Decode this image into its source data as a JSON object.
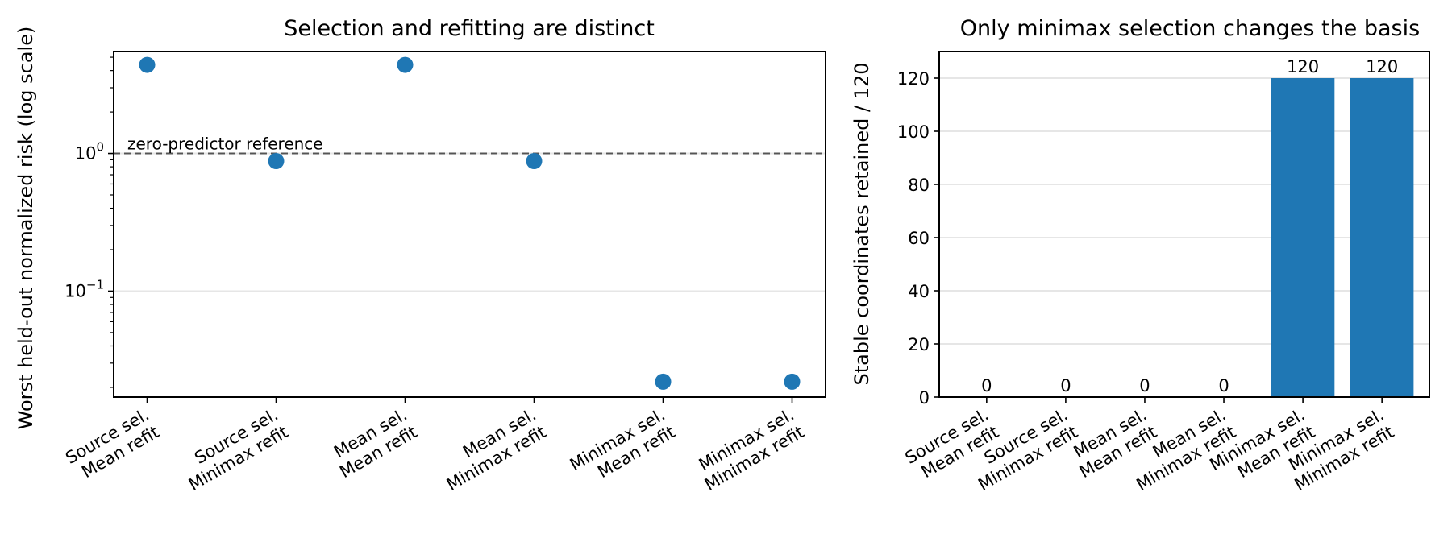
{
  "chart_data": [
    {
      "type": "scatter",
      "title": "Selection and refitting are distinct",
      "ylabel": "Worst held-out normalized risk (log scale)",
      "yscale": "log",
      "ylim": [
        0.017,
        5.5
      ],
      "yticks": [
        {
          "value": 1,
          "base": "10",
          "exp": "0"
        },
        {
          "value": 0.1,
          "base": "10",
          "exp": "−1"
        }
      ],
      "categories": [
        [
          "Source sel.",
          "Mean refit"
        ],
        [
          "Source sel.",
          "Minimax refit"
        ],
        [
          "Mean sel.",
          "Mean refit"
        ],
        [
          "Mean sel.",
          "Minimax refit"
        ],
        [
          "Minimax sel.",
          "Mean refit"
        ],
        [
          "Minimax sel.",
          "Minimax refit"
        ]
      ],
      "values": [
        4.4,
        0.88,
        4.4,
        0.88,
        0.022,
        0.022
      ],
      "reference": {
        "value": 1,
        "label": "zero-predictor reference",
        "color": "#555555"
      },
      "color": "#1f77b4",
      "grid": "y"
    },
    {
      "type": "bar",
      "title": "Only minimax selection changes the basis",
      "ylabel": "Stable coordinates retained / 120",
      "ylim": [
        0,
        130
      ],
      "yticks": [
        "0",
        "20",
        "40",
        "60",
        "80",
        "100",
        "120"
      ],
      "categories": [
        [
          "Source sel.",
          "Mean refit"
        ],
        [
          "Source sel.",
          "Minimax refit"
        ],
        [
          "Mean sel.",
          "Mean refit"
        ],
        [
          "Mean sel.",
          "Minimax refit"
        ],
        [
          "Minimax sel.",
          "Mean refit"
        ],
        [
          "Minimax sel.",
          "Minimax refit"
        ]
      ],
      "values": [
        0,
        0,
        0,
        0,
        120,
        120
      ],
      "data_labels": [
        "0",
        "0",
        "0",
        "0",
        "120",
        "120"
      ],
      "color": "#1f77b4",
      "grid": "y"
    }
  ]
}
